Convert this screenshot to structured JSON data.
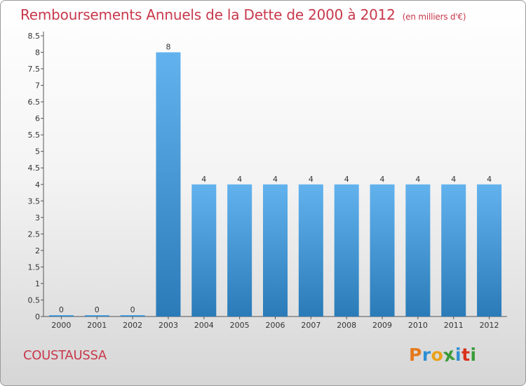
{
  "header": {
    "title": "Remboursements Annuels de la Dette de 2000 à 2012",
    "unit": "(en milliers d'€)"
  },
  "commune": "COUSTAUSSA",
  "logo": {
    "letters": [
      "P",
      "r",
      "o",
      "x",
      "i",
      "t",
      "i"
    ],
    "colors": [
      "#e57a1c",
      "#2f8fd3",
      "#e9a11a",
      "#3a9b3a",
      "#2f8fd3",
      "#d9311c",
      "#3a9b3a"
    ]
  },
  "chart_data": {
    "type": "bar",
    "title": "Remboursements Annuels de la Dette de 2000 à 2012",
    "xlabel": "",
    "ylabel": "",
    "categories": [
      "2000",
      "2001",
      "2002",
      "2003",
      "2004",
      "2005",
      "2006",
      "2007",
      "2008",
      "2009",
      "2010",
      "2011",
      "2012"
    ],
    "values": [
      0,
      0,
      0,
      8,
      4,
      4,
      4,
      4,
      4,
      4,
      4,
      4,
      4
    ],
    "data_labels": [
      "0",
      "0",
      "0",
      "8",
      "4",
      "4",
      "4",
      "4",
      "4",
      "4",
      "4",
      "4",
      "4"
    ],
    "ylim": [
      0,
      8.5
    ],
    "yticks": [
      0,
      0.5,
      1,
      1.5,
      2,
      2.5,
      3,
      3.5,
      4,
      4.5,
      5,
      5.5,
      6,
      6.5,
      7,
      7.5,
      8,
      8.5
    ],
    "ytick_labels": [
      "0",
      "0.5",
      "1",
      "1.5",
      "2",
      "2.5",
      "3",
      "3.5",
      "4",
      "4.5",
      "5",
      "5.5",
      "6",
      "6.5",
      "7",
      "7.5",
      "8",
      "8.5"
    ],
    "bar_color_top": "#62b2ee",
    "bar_color_bottom": "#2a7bb8",
    "grid": false,
    "legend": "none"
  }
}
